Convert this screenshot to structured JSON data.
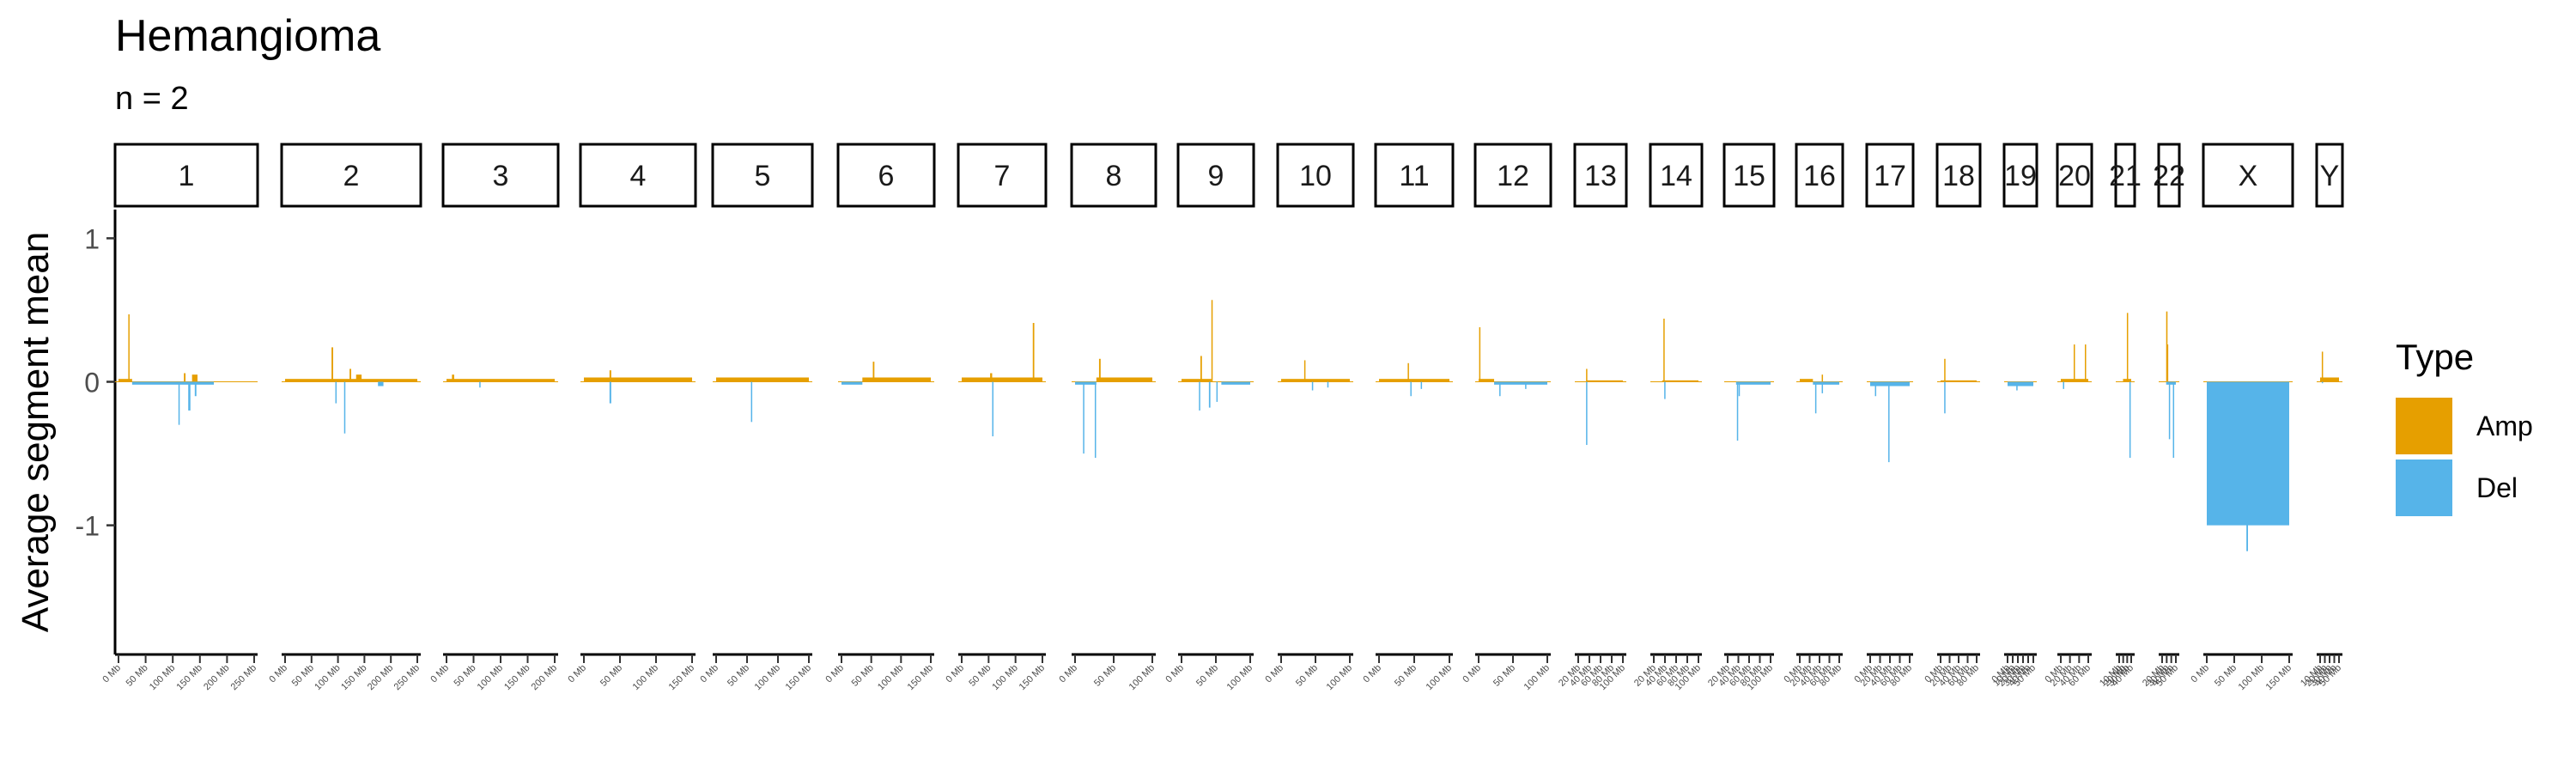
{
  "header": {
    "title": "Hemangioma",
    "subtitle": "n = 2"
  },
  "legend": {
    "title": "Type",
    "items": [
      {
        "label": "Amp",
        "color": "#E69F00"
      },
      {
        "label": "Del",
        "color": "#56B4E9"
      }
    ]
  },
  "chart_data": {
    "type": "bar",
    "title": "Hemangioma",
    "subtitle": "n = 2",
    "xlabel": "",
    "ylabel": "Average segment mean",
    "ylim": [
      -1.9,
      1.2
    ],
    "yticks": [
      1,
      0,
      -1
    ],
    "ytick_labels": [
      "1",
      "0",
      "-1"
    ],
    "grid": false,
    "legend_position": "right",
    "facets": [
      {
        "label": "1",
        "length_mb": 249,
        "ticks": [
          "0 Mb",
          "50 Mb",
          "100 Mb",
          "150 Mb",
          "200 Mb",
          "250 Mb"
        ],
        "amp": [
          [
            0,
            25,
            0.02
          ],
          [
            18,
            20,
            0.47
          ],
          [
            120,
            123,
            0.06
          ],
          [
            135,
            145,
            0.05
          ]
        ],
        "del": [
          [
            25,
            175,
            -0.02
          ],
          [
            110,
            112,
            -0.3
          ],
          [
            128,
            132,
            -0.2
          ],
          [
            140,
            143,
            -0.1
          ]
        ]
      },
      {
        "label": "2",
        "length_mb": 242,
        "ticks": [
          "0 Mb",
          "50 Mb",
          "100 Mb",
          "150 Mb",
          "200 Mb",
          "250 Mb"
        ],
        "amp": [
          [
            0,
            242,
            0.02
          ],
          [
            85,
            88,
            0.24
          ],
          [
            118,
            121,
            0.09
          ],
          [
            130,
            140,
            0.05
          ]
        ],
        "del": [
          [
            92,
            94,
            -0.15
          ],
          [
            108,
            110,
            -0.36
          ],
          [
            170,
            180,
            -0.03
          ]
        ]
      },
      {
        "label": "3",
        "length_mb": 198,
        "ticks": [
          "0 Mb",
          "50 Mb",
          "100 Mb",
          "150 Mb",
          "200 Mb"
        ],
        "amp": [
          [
            0,
            198,
            0.02
          ],
          [
            10,
            14,
            0.05
          ]
        ],
        "del": [
          [
            60,
            62,
            -0.04
          ]
        ]
      },
      {
        "label": "4",
        "length_mb": 190,
        "ticks": [
          "0 Mb",
          "50 Mb",
          "100 Mb",
          "150 Mb"
        ],
        "amp": [
          [
            0,
            190,
            0.03
          ],
          [
            45,
            48,
            0.08
          ]
        ],
        "del": [
          [
            45,
            48,
            -0.15
          ]
        ]
      },
      {
        "label": "5",
        "length_mb": 181,
        "ticks": [
          "0 Mb",
          "50 Mb",
          "100 Mb",
          "150 Mb"
        ],
        "amp": [
          [
            0,
            181,
            0.03
          ]
        ],
        "del": [
          [
            68,
            70,
            -0.28
          ]
        ]
      },
      {
        "label": "6",
        "length_mb": 171,
        "ticks": [
          "0 Mb",
          "50 Mb",
          "100 Mb",
          "150 Mb"
        ],
        "amp": [
          [
            40,
            171,
            0.03
          ],
          [
            60,
            63,
            0.14
          ]
        ],
        "del": [
          [
            0,
            40,
            -0.02
          ]
        ]
      },
      {
        "label": "7",
        "length_mb": 159,
        "ticks": [
          "0 Mb",
          "50 Mb",
          "100 Mb",
          "150 Mb"
        ],
        "amp": [
          [
            0,
            159,
            0.03
          ],
          [
            56,
            60,
            0.06
          ],
          [
            140,
            143,
            0.41
          ]
        ],
        "del": [
          [
            60,
            62,
            -0.38
          ]
        ]
      },
      {
        "label": "8",
        "length_mb": 145,
        "ticks": [
          "0 Mb",
          "50 Mb",
          "100 Mb"
        ],
        "amp": [
          [
            40,
            145,
            0.03
          ],
          [
            45,
            48,
            0.16
          ]
        ],
        "del": [
          [
            0,
            40,
            -0.02
          ],
          [
            15,
            17,
            -0.5
          ],
          [
            37,
            39,
            -0.53
          ]
        ]
      },
      {
        "label": "9",
        "length_mb": 138,
        "ticks": [
          "0 Mb",
          "50 Mb",
          "100 Mb"
        ],
        "amp": [
          [
            0,
            60,
            0.02
          ],
          [
            38,
            41,
            0.18
          ],
          [
            60,
            62,
            0.57
          ]
        ],
        "del": [
          [
            35,
            37,
            -0.2
          ],
          [
            55,
            58,
            -0.18
          ],
          [
            70,
            72,
            -0.14
          ],
          [
            80,
            138,
            -0.02
          ]
        ]
      },
      {
        "label": "10",
        "length_mb": 134,
        "ticks": [
          "0 Mb",
          "50 Mb",
          "100 Mb"
        ],
        "amp": [
          [
            0,
            134,
            0.02
          ],
          [
            45,
            47,
            0.15
          ]
        ],
        "del": [
          [
            60,
            62,
            -0.06
          ],
          [
            90,
            92,
            -0.04
          ]
        ]
      },
      {
        "label": "11",
        "length_mb": 135,
        "ticks": [
          "0 Mb",
          "50 Mb",
          "100 Mb"
        ],
        "amp": [
          [
            0,
            135,
            0.02
          ],
          [
            55,
            57,
            0.13
          ]
        ],
        "del": [
          [
            60,
            62,
            -0.1
          ],
          [
            80,
            82,
            -0.05
          ]
        ]
      },
      {
        "label": "12",
        "length_mb": 133,
        "ticks": [
          "0 Mb",
          "50 Mb",
          "100 Mb"
        ],
        "amp": [
          [
            0,
            30,
            0.02
          ],
          [
            1,
            3,
            0.38
          ]
        ],
        "del": [
          [
            30,
            133,
            -0.02
          ],
          [
            40,
            42,
            -0.1
          ],
          [
            90,
            92,
            -0.05
          ]
        ]
      },
      {
        "label": "13",
        "length_mb": 114,
        "ticks": [
          "20 Mb",
          "40 Mb",
          "60 Mb",
          "80 Mb",
          "100 Mb"
        ],
        "amp": [
          [
            20,
            114,
            0.01
          ],
          [
            20,
            22,
            0.09
          ]
        ],
        "del": [
          [
            20,
            22,
            -0.44
          ]
        ]
      },
      {
        "label": "14",
        "length_mb": 107,
        "ticks": [
          "20 Mb",
          "40 Mb",
          "60 Mb",
          "80 Mb",
          "100 Mb"
        ],
        "amp": [
          [
            20,
            107,
            0.01
          ],
          [
            23,
            25,
            0.44
          ]
        ],
        "del": [
          [
            25,
            27,
            -0.12
          ]
        ]
      },
      {
        "label": "15",
        "length_mb": 102,
        "ticks": [
          "20 Mb",
          "40 Mb",
          "60 Mb",
          "80 Mb",
          "100 Mb"
        ],
        "amp": [],
        "del": [
          [
            20,
            102,
            -0.02
          ],
          [
            22,
            24,
            -0.41
          ],
          [
            26,
            28,
            -0.1
          ]
        ]
      },
      {
        "label": "16",
        "length_mb": 90,
        "ticks": [
          "0 Mb",
          "20 Mb",
          "40 Mb",
          "60 Mb",
          "80 Mb"
        ],
        "amp": [
          [
            0,
            30,
            0.02
          ],
          [
            50,
            52,
            0.05
          ]
        ],
        "del": [
          [
            30,
            90,
            -0.02
          ],
          [
            35,
            37,
            -0.22
          ],
          [
            50,
            52,
            -0.08
          ]
        ]
      },
      {
        "label": "17",
        "length_mb": 83,
        "ticks": [
          "0 Mb",
          "20 Mb",
          "40 Mb",
          "60 Mb",
          "80 Mb"
        ],
        "amp": [],
        "del": [
          [
            0,
            83,
            -0.03
          ],
          [
            38,
            40,
            -0.56
          ],
          [
            10,
            12,
            -0.1
          ]
        ]
      },
      {
        "label": "18",
        "length_mb": 80,
        "ticks": [
          "0 Mb",
          "20 Mb",
          "40 Mb",
          "60 Mb",
          "80 Mb"
        ],
        "amp": [
          [
            0,
            80,
            0.01
          ],
          [
            8,
            10,
            0.16
          ]
        ],
        "del": [
          [
            8,
            10,
            -0.22
          ]
        ]
      },
      {
        "label": "19",
        "length_mb": 59,
        "ticks": [
          "0 Mb",
          "10 Mb",
          "20 Mb",
          "30 Mb",
          "40 Mb",
          "50 Mb"
        ],
        "amp": [],
        "del": [
          [
            0,
            59,
            -0.03
          ],
          [
            20,
            23,
            -0.06
          ]
        ]
      },
      {
        "label": "20",
        "length_mb": 64,
        "ticks": [
          "0 Mb",
          "20 Mb",
          "40 Mb",
          "60 Mb"
        ],
        "amp": [
          [
            0,
            64,
            0.02
          ],
          [
            30,
            32,
            0.26
          ],
          [
            56,
            58,
            0.26
          ]
        ],
        "del": [
          [
            5,
            7,
            -0.05
          ]
        ]
      },
      {
        "label": "21",
        "length_mb": 47,
        "ticks": [
          "10 Mb",
          "20 Mb",
          "30 Mb",
          "40 Mb"
        ],
        "amp": [
          [
            15,
            47,
            0.02
          ],
          [
            30,
            32,
            0.48
          ]
        ],
        "del": [
          [
            40,
            42,
            -0.53
          ]
        ]
      },
      {
        "label": "22",
        "length_mb": 51,
        "ticks": [
          "20 Mb",
          "30 Mb",
          "40 Mb",
          "50 Mb"
        ],
        "amp": [
          [
            15,
            20,
            0.49
          ],
          [
            18,
            21,
            0.26
          ]
        ],
        "del": [
          [
            15,
            51,
            -0.02
          ],
          [
            25,
            27,
            -0.4
          ],
          [
            40,
            42,
            -0.53
          ]
        ]
      },
      {
        "label": "X",
        "length_mb": 156,
        "ticks": [
          "0 Mb",
          "50 Mb",
          "100 Mb",
          "150 Mb"
        ],
        "amp": [],
        "del": [
          [
            0,
            156,
            -1.0
          ],
          [
            10,
            12,
            -0.55
          ],
          [
            75,
            78,
            -1.18
          ]
        ]
      },
      {
        "label": "Y",
        "length_mb": 57,
        "ticks": [
          "10 Mb",
          "20 Mb",
          "30 Mb",
          "40 Mb",
          "50 Mb"
        ],
        "amp": [
          [
            0,
            57,
            0.03
          ],
          [
            5,
            7,
            0.21
          ]
        ],
        "del": [
          [
            5,
            7,
            -0.01
          ]
        ]
      }
    ]
  }
}
